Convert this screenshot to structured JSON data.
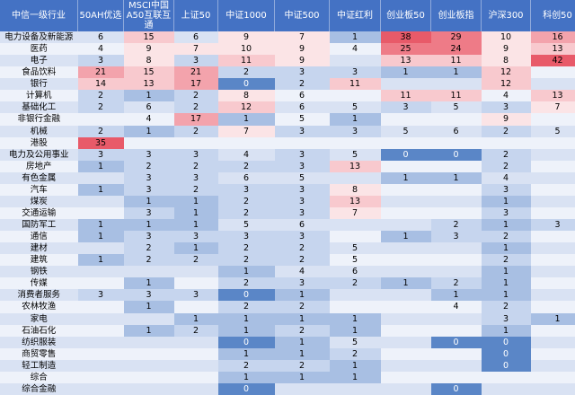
{
  "headers": [
    "中信一级行业",
    "50AH优选",
    "MSCI中国A50互联互通",
    "上证50",
    "中证1000",
    "中证500",
    "中证红利",
    "创业板50",
    "创业板指",
    "沪深300",
    "科创50"
  ],
  "rows": [
    {
      "name": "电力设备及新能源",
      "v": [
        "6",
        "15",
        "6",
        "9",
        "7",
        "1",
        "38",
        "29",
        "10",
        "16"
      ]
    },
    {
      "name": "医药",
      "v": [
        "4",
        "9",
        "7",
        "10",
        "9",
        "4",
        "25",
        "24",
        "9",
        "13"
      ]
    },
    {
      "name": "电子",
      "v": [
        "3",
        "8",
        "3",
        "11",
        "9",
        "",
        "13",
        "11",
        "8",
        "42"
      ]
    },
    {
      "name": "食品饮料",
      "v": [
        "21",
        "15",
        "21",
        "2",
        "3",
        "3",
        "1",
        "1",
        "12",
        ""
      ]
    },
    {
      "name": "银行",
      "v": [
        "14",
        "13",
        "17",
        "0",
        "2",
        "11",
        "",
        "",
        "12",
        ""
      ]
    },
    {
      "name": "计算机",
      "v": [
        "2",
        "1",
        "2",
        "8",
        "6",
        "",
        "11",
        "11",
        "4",
        "13"
      ]
    },
    {
      "name": "基础化工",
      "v": [
        "2",
        "6",
        "2",
        "12",
        "6",
        "5",
        "3",
        "5",
        "3",
        "7"
      ]
    },
    {
      "name": "非银行金融",
      "v": [
        "",
        "4",
        "17",
        "1",
        "5",
        "1",
        "",
        "",
        "9",
        ""
      ]
    },
    {
      "name": "机械",
      "v": [
        "2",
        "1",
        "2",
        "7",
        "3",
        "3",
        "5",
        "6",
        "2",
        "5"
      ]
    },
    {
      "name": "港股",
      "v": [
        "35",
        "",
        "",
        "",
        "",
        "",
        "",
        "",
        "",
        ""
      ]
    },
    {
      "name": "电力及公用事业",
      "v": [
        "3",
        "3",
        "3",
        "4",
        "3",
        "5",
        "0",
        "0",
        "2",
        ""
      ]
    },
    {
      "name": "房地产",
      "v": [
        "1",
        "2",
        "2",
        "2",
        "3",
        "13",
        "",
        "",
        "2",
        ""
      ]
    },
    {
      "name": "有色金属",
      "v": [
        "",
        "3",
        "3",
        "6",
        "5",
        "",
        "1",
        "1",
        "4",
        ""
      ]
    },
    {
      "name": "汽车",
      "v": [
        "1",
        "3",
        "2",
        "3",
        "3",
        "8",
        "",
        "",
        "3",
        ""
      ]
    },
    {
      "name": "煤炭",
      "v": [
        "",
        "1",
        "1",
        "2",
        "3",
        "13",
        "",
        "",
        "1",
        ""
      ]
    },
    {
      "name": "交通运输",
      "v": [
        "",
        "3",
        "1",
        "2",
        "3",
        "7",
        "",
        "",
        "3",
        ""
      ]
    },
    {
      "name": "国防军工",
      "v": [
        "1",
        "1",
        "1",
        "5",
        "6",
        "",
        "",
        "2",
        "1",
        "3"
      ]
    },
    {
      "name": "通信",
      "v": [
        "1",
        "3",
        "3",
        "3",
        "3",
        "",
        "1",
        "3",
        "2",
        ""
      ]
    },
    {
      "name": "建材",
      "v": [
        "",
        "2",
        "1",
        "2",
        "2",
        "5",
        "",
        "",
        "1",
        ""
      ]
    },
    {
      "name": "建筑",
      "v": [
        "1",
        "2",
        "2",
        "2",
        "2",
        "5",
        "",
        "",
        "2",
        ""
      ]
    },
    {
      "name": "钢铁",
      "v": [
        "",
        "",
        "",
        "1",
        "4",
        "6",
        "",
        "",
        "1",
        ""
      ]
    },
    {
      "name": "传媒",
      "v": [
        "",
        "1",
        "",
        "2",
        "3",
        "2",
        "1",
        "2",
        "1",
        ""
      ]
    },
    {
      "name": "消费者服务",
      "v": [
        "3",
        "3",
        "3",
        "0",
        "1",
        "",
        "",
        "1",
        "1",
        ""
      ]
    },
    {
      "name": "农林牧渔",
      "v": [
        "",
        "1",
        "",
        "2",
        "2",
        "",
        "",
        "4",
        "2",
        ""
      ]
    },
    {
      "name": "家电",
      "v": [
        "",
        "",
        "1",
        "1",
        "1",
        "1",
        "",
        "",
        "3",
        "1"
      ]
    },
    {
      "name": "石油石化",
      "v": [
        "",
        "1",
        "2",
        "1",
        "2",
        "1",
        "",
        "",
        "1",
        ""
      ]
    },
    {
      "name": "纺织服装",
      "v": [
        "",
        "",
        "",
        "0",
        "1",
        "5",
        "",
        "0",
        "0",
        ""
      ]
    },
    {
      "name": "商贸零售",
      "v": [
        "",
        "",
        "",
        "1",
        "1",
        "2",
        "",
        "",
        "0",
        ""
      ]
    },
    {
      "name": "轻工制造",
      "v": [
        "",
        "",
        "",
        "2",
        "2",
        "1",
        "",
        "",
        "0",
        ""
      ]
    },
    {
      "name": "综合",
      "v": [
        "",
        "",
        "",
        "1",
        "1",
        "1",
        "",
        "",
        "",
        ""
      ]
    },
    {
      "name": "综合金融",
      "v": [
        "",
        "",
        "",
        "0",
        "",
        "",
        "",
        "0",
        "",
        ""
      ]
    }
  ],
  "colors": {
    "header": "#4472c4",
    "blue_dark": "#5a86c7",
    "blue": "#a8bfe3",
    "red": "#e85a69"
  }
}
